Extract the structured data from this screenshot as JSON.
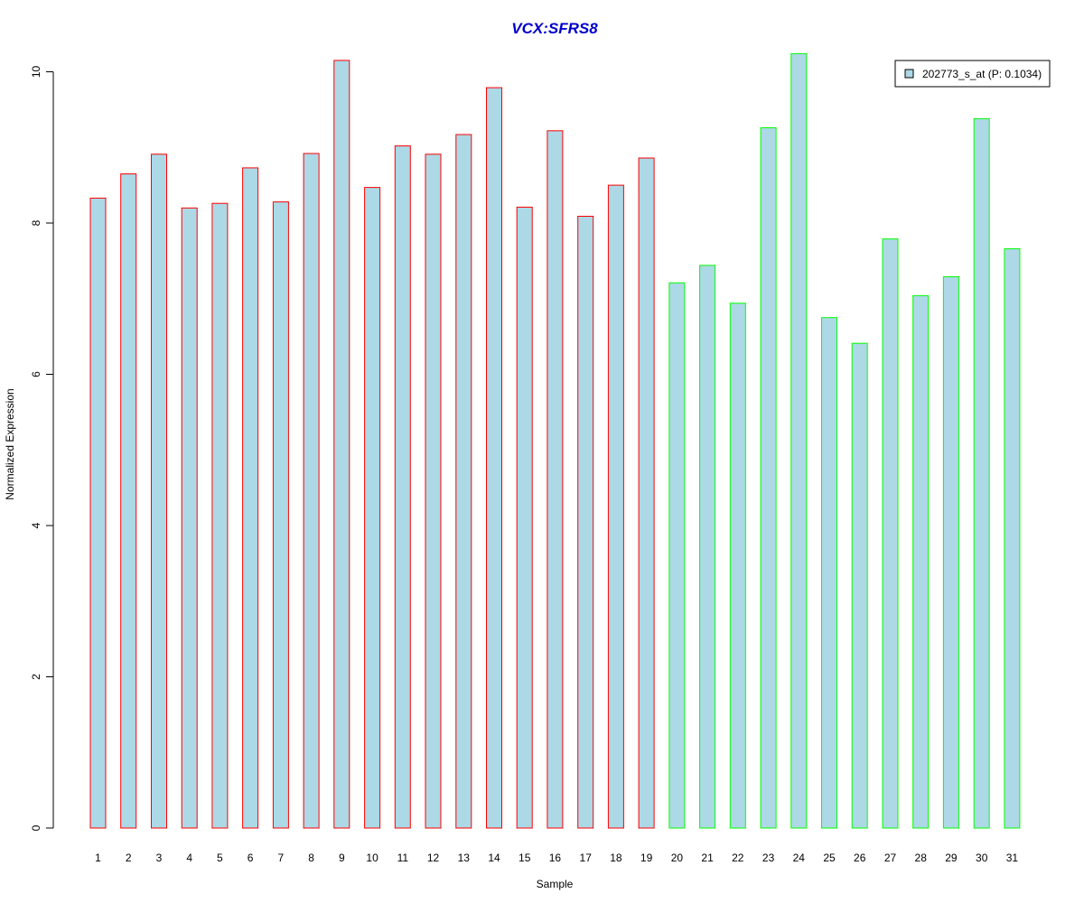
{
  "chart_data": {
    "type": "bar",
    "title": "VCX:SFRS8",
    "xlabel": "Sample",
    "ylabel": "Normalized Expression",
    "categories": [
      "1",
      "2",
      "3",
      "4",
      "5",
      "6",
      "7",
      "8",
      "9",
      "10",
      "11",
      "12",
      "13",
      "14",
      "15",
      "16",
      "17",
      "18",
      "19",
      "20",
      "21",
      "22",
      "23",
      "24",
      "25",
      "26",
      "27",
      "28",
      "29",
      "30",
      "31"
    ],
    "values": [
      8.33,
      8.65,
      8.91,
      8.2,
      8.26,
      8.73,
      8.28,
      8.92,
      10.15,
      8.47,
      9.02,
      8.91,
      9.17,
      9.79,
      8.21,
      9.22,
      8.09,
      8.5,
      8.86,
      7.21,
      7.44,
      6.94,
      9.26,
      10.24,
      6.75,
      6.41,
      7.79,
      7.04,
      7.29,
      9.38,
      7.66
    ],
    "groups": [
      "red",
      "red",
      "red",
      "red",
      "red",
      "red",
      "red",
      "red",
      "red",
      "red",
      "red",
      "red",
      "red",
      "red",
      "red",
      "red",
      "red",
      "red",
      "red",
      "green",
      "green",
      "green",
      "green",
      "green",
      "green",
      "green",
      "green",
      "green",
      "green",
      "green",
      "green"
    ],
    "yticks": [
      "0",
      "2",
      "4",
      "6",
      "8",
      "10"
    ],
    "ylim": [
      0,
      10.3
    ],
    "legend": {
      "label": "202773_s_at (P: 0.1034)",
      "position": "top-right"
    },
    "colors": {
      "bar_fill": "#add8e6",
      "red": "#ff0000",
      "green": "#00ff00",
      "title": "#0000cc"
    }
  }
}
